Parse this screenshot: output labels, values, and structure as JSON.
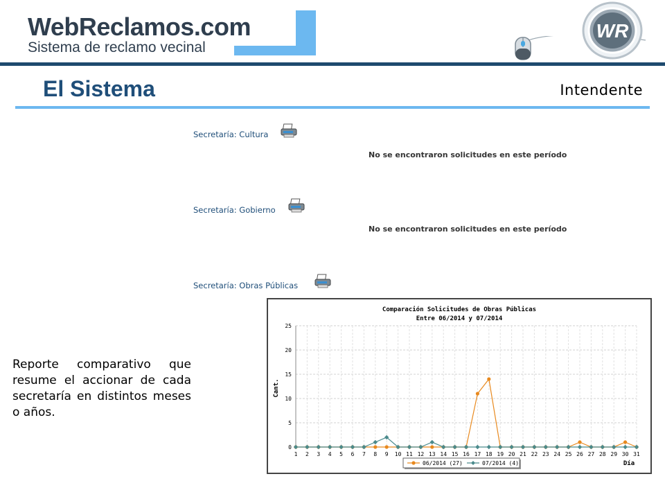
{
  "header": {
    "logo_text": "WebReclamos.com",
    "logo_subtitle": "Sistema de reclamo vecinal",
    "badge_text": "WR"
  },
  "page": {
    "title": "El Sistema",
    "role": "Intendente"
  },
  "secretarias": [
    {
      "label": "Secretaría: Cultura",
      "message": "No se encontraron solicitudes en este período"
    },
    {
      "label": "Secretaría: Gobierno",
      "message": "No se encontraron solicitudes en este período"
    },
    {
      "label": "Secretaría: Obras Públicas",
      "message": ""
    }
  ],
  "side_note": "Reporte comparativo que resume el accionar de cada secretaría en distintos meses o años.",
  "colors": {
    "accent_dark": "#1f4e79",
    "accent_light": "#6cb8f0",
    "series_orange": "#e8891e",
    "series_teal": "#4a8a8c"
  },
  "chart_data": {
    "type": "line",
    "title": "Comparación Solicitudes de Obras Públicas",
    "subtitle": "Entre 06/2014 y 07/2014",
    "xlabel": "Día",
    "ylabel": "Cant.",
    "ylim": [
      0,
      25
    ],
    "yticks": [
      0,
      5,
      10,
      15,
      20,
      25
    ],
    "grid": true,
    "legend_position": "bottom-center",
    "x": [
      "1",
      "2",
      "3",
      "4",
      "5",
      "6",
      "7",
      "8",
      "9",
      "10",
      "11",
      "12",
      "13",
      "14",
      "15",
      "16",
      "17",
      "18",
      "19",
      "20",
      "21",
      "22",
      "23",
      "24",
      "25",
      "26",
      "27",
      "28",
      "29",
      "30",
      "31"
    ],
    "series": [
      {
        "name": "06/2014 (27)",
        "color": "#e8891e",
        "values": [
          0,
          0,
          0,
          0,
          0,
          0,
          0,
          0,
          0,
          0,
          0,
          0,
          0,
          0,
          0,
          0,
          11,
          14,
          0,
          0,
          0,
          0,
          0,
          0,
          0,
          1,
          0,
          0,
          0,
          1,
          0
        ]
      },
      {
        "name": "07/2014 (4)",
        "color": "#4a8a8c",
        "values": [
          0,
          0,
          0,
          0,
          0,
          0,
          0,
          1,
          2,
          0,
          0,
          0,
          1,
          0,
          0,
          0,
          0,
          0,
          0,
          0,
          0,
          0,
          0,
          0,
          0,
          0,
          0,
          0,
          0,
          0,
          0
        ]
      }
    ]
  }
}
